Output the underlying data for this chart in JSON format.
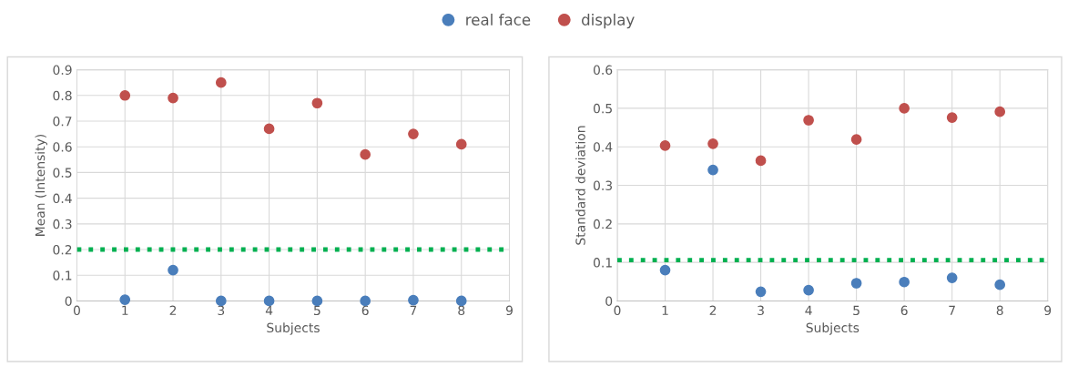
{
  "chart_data": [
    {
      "type": "scatter",
      "xlabel": "Subjects",
      "ylabel": "Mean (Intensity)",
      "xlim": [
        0,
        9
      ],
      "xticks": [
        0,
        1,
        2,
        3,
        4,
        5,
        6,
        7,
        8,
        9
      ],
      "ylim": [
        0,
        0.9
      ],
      "yticks": [
        0,
        0.1,
        0.2,
        0.3,
        0.4,
        0.5,
        0.6,
        0.7,
        0.8,
        0.9
      ],
      "grid": true,
      "marker": "circle",
      "legend": "top",
      "x": [
        1,
        2,
        3,
        4,
        5,
        6,
        7,
        8
      ],
      "series": [
        {
          "name": "real face",
          "color": "#4a7ebb",
          "values": [
            0.005,
            0.12,
            0,
            0,
            0,
            0,
            0.003,
            0
          ]
        },
        {
          "name": "display",
          "color": "#c0504d",
          "values": [
            0.8,
            0.79,
            0.85,
            0.67,
            0.77,
            0.57,
            0.65,
            0.61
          ]
        }
      ],
      "ref_lines": [
        {
          "axis": "y",
          "value": 0.2,
          "color": "#00b050",
          "line_style": "dotted"
        }
      ]
    },
    {
      "type": "scatter",
      "xlabel": "Subjects",
      "ylabel": "Standard deviation",
      "xlim": [
        0,
        9
      ],
      "xticks": [
        0,
        1,
        2,
        3,
        4,
        5,
        6,
        7,
        8,
        9
      ],
      "ylim": [
        0,
        0.6
      ],
      "yticks": [
        0,
        0.1,
        0.2,
        0.3,
        0.4,
        0.5,
        0.6
      ],
      "grid": true,
      "marker": "circle",
      "x": [
        1,
        2,
        3,
        4,
        5,
        6,
        7,
        8
      ],
      "series": [
        {
          "color": "#4a7ebb",
          "values": [
            0.08,
            0.34,
            0.024,
            0.028,
            0.046,
            0.049,
            0.06,
            0.042
          ]
        },
        {
          "color": "#c0504d",
          "values": [
            0.403,
            0.408,
            0.364,
            0.469,
            0.419,
            0.5,
            0.476,
            0.491
          ]
        }
      ],
      "ref_lines": [
        {
          "axis": "y",
          "value": 0.106,
          "color": "#00b050",
          "line_style": "dotted"
        }
      ]
    }
  ]
}
